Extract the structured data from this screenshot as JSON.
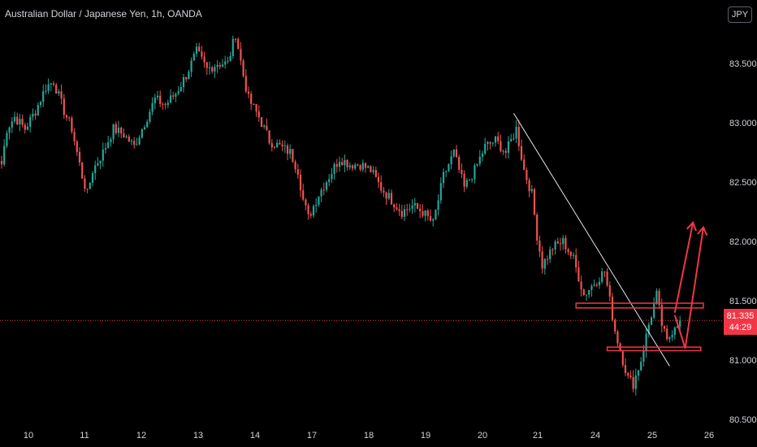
{
  "header": {
    "title": "Australian Dollar / Japanese Yen, 1h, OANDA",
    "currency": "JPY"
  },
  "last_price": {
    "value": "81.335",
    "countdown": "44:29"
  },
  "colors": {
    "up": "#26a69a",
    "down": "#ef5350",
    "drawing": "#f23645",
    "trendline": "#e0e3eb",
    "price_line": "#f23645",
    "axis_text": "#d1d4dc"
  },
  "chart_data": {
    "type": "candlestick",
    "symbol": "AUDJPY",
    "interval": "1h",
    "x_ticks": [
      "10",
      "11",
      "12",
      "13",
      "14",
      "17",
      "18",
      "19",
      "20",
      "21",
      "24",
      "25",
      "26"
    ],
    "y_ticks": [
      "83.500",
      "83.000",
      "82.500",
      "82.000",
      "81.500",
      "81.000",
      "80.500"
    ],
    "ylim": [
      80.46,
      83.98
    ],
    "last_price": 81.335,
    "anchors": [
      [
        0,
        82.65
      ],
      [
        2,
        82.95
      ],
      [
        5,
        83.05
      ],
      [
        9,
        82.95
      ],
      [
        13,
        83.1
      ],
      [
        17,
        83.3
      ],
      [
        20,
        83.35
      ],
      [
        24,
        83.1
      ],
      [
        27,
        82.95
      ],
      [
        29,
        82.75
      ],
      [
        31,
        82.55
      ],
      [
        33,
        82.4
      ],
      [
        35,
        82.6
      ],
      [
        39,
        82.75
      ],
      [
        43,
        82.95
      ],
      [
        47,
        82.9
      ],
      [
        51,
        82.8
      ],
      [
        55,
        83.0
      ],
      [
        59,
        83.2
      ],
      [
        63,
        83.15
      ],
      [
        67,
        83.25
      ],
      [
        71,
        83.4
      ],
      [
        75,
        83.6
      ],
      [
        79,
        83.45
      ],
      [
        83,
        83.5
      ],
      [
        87,
        83.5
      ],
      [
        90,
        83.75
      ],
      [
        93,
        83.4
      ],
      [
        95,
        83.2
      ],
      [
        99,
        83.05
      ],
      [
        103,
        82.85
      ],
      [
        107,
        82.8
      ],
      [
        111,
        82.75
      ],
      [
        114,
        82.6
      ],
      [
        116,
        82.35
      ],
      [
        118,
        82.2
      ],
      [
        122,
        82.4
      ],
      [
        126,
        82.55
      ],
      [
        130,
        82.7
      ],
      [
        134,
        82.65
      ],
      [
        138,
        82.65
      ],
      [
        142,
        82.6
      ],
      [
        146,
        82.45
      ],
      [
        150,
        82.35
      ],
      [
        154,
        82.25
      ],
      [
        158,
        82.3
      ],
      [
        162,
        82.25
      ],
      [
        166,
        82.15
      ],
      [
        170,
        82.55
      ],
      [
        174,
        82.75
      ],
      [
        178,
        82.45
      ],
      [
        182,
        82.6
      ],
      [
        186,
        82.8
      ],
      [
        190,
        82.85
      ],
      [
        194,
        82.75
      ],
      [
        198,
        82.95
      ],
      [
        201,
        82.6
      ],
      [
        204,
        82.4
      ],
      [
        206,
        82.05
      ],
      [
        208,
        81.8
      ],
      [
        212,
        81.95
      ],
      [
        216,
        82.0
      ],
      [
        220,
        81.85
      ],
      [
        224,
        81.55
      ],
      [
        228,
        81.65
      ],
      [
        232,
        81.75
      ],
      [
        234,
        81.5
      ],
      [
        236,
        81.25
      ],
      [
        239,
        81.0
      ],
      [
        241,
        80.85
      ],
      [
        243,
        80.8
      ],
      [
        246,
        81.0
      ],
      [
        249,
        81.3
      ],
      [
        252,
        81.55
      ],
      [
        254,
        81.3
      ],
      [
        256,
        81.15
      ],
      [
        259,
        81.3
      ],
      [
        261,
        81.335
      ]
    ],
    "drawings": {
      "trendline": {
        "from": [
          197,
          83.08
        ],
        "to": [
          257,
          80.95
        ]
      },
      "resistance_zone": {
        "x_from": 221,
        "x_to": 270,
        "y_low": 81.44,
        "y_high": 81.48
      },
      "support_zone": {
        "x_from": 233,
        "x_to": 269,
        "y_low": 81.08,
        "y_high": 81.11
      },
      "projection_path": [
        [
          259,
          81.38
        ],
        [
          263,
          81.1
        ],
        [
          270,
          82.12
        ]
      ],
      "projection_arrow": {
        "from": [
          259,
          81.4
        ],
        "to": [
          266,
          82.16
        ]
      }
    }
  }
}
